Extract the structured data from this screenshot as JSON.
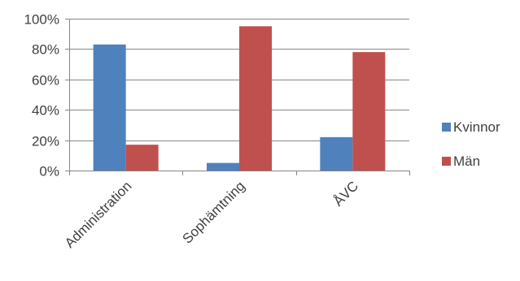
{
  "chart_data": {
    "type": "bar",
    "title": "",
    "xlabel": "",
    "ylabel": "",
    "categories": [
      "Administration",
      "Sophämtning",
      "ÅVC"
    ],
    "series": [
      {
        "name": "Kvinnor",
        "color": "#4F81BD",
        "values": [
          83,
          5,
          22
        ]
      },
      {
        "name": "Män",
        "color": "#C0504D",
        "values": [
          17,
          95,
          78
        ]
      }
    ],
    "ylim": [
      0,
      100
    ],
    "yticks": [
      0,
      20,
      40,
      60,
      80,
      100
    ],
    "ytick_labels": [
      "0%",
      "20%",
      "40%",
      "60%",
      "80%",
      "100%"
    ],
    "grid": true,
    "legend": "right"
  }
}
